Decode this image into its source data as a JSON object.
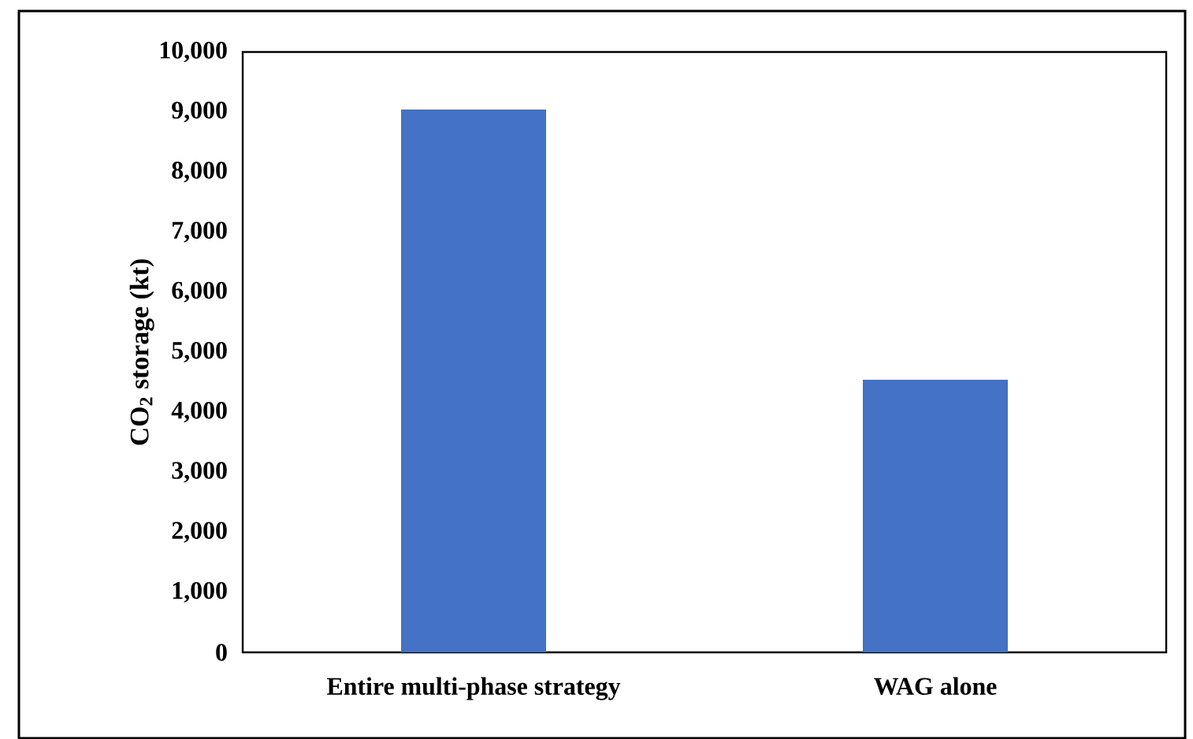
{
  "chart_data": {
    "type": "bar",
    "ylabel": "CO$_{2}$ storage (kt)",
    "categories": [
      "Entire multi-phase strategy",
      "WAG alone"
    ],
    "values": [
      9040,
      4540
    ],
    "color": "#4472c4",
    "ylim": [
      0,
      10000
    ],
    "yticks": [
      {
        "value": 0,
        "label": "0"
      },
      {
        "value": 1000,
        "label": "1,000"
      },
      {
        "value": 2000,
        "label": "2,000"
      },
      {
        "value": 3000,
        "label": "3,000"
      },
      {
        "value": 4000,
        "label": "4,000"
      },
      {
        "value": 5000,
        "label": "5,000"
      },
      {
        "value": 6000,
        "label": "6,000"
      },
      {
        "value": 7000,
        "label": "7,000"
      },
      {
        "value": 8000,
        "label": "8,000"
      },
      {
        "value": 9000,
        "label": "9,000"
      },
      {
        "value": 10000,
        "label": "10,000"
      }
    ]
  }
}
